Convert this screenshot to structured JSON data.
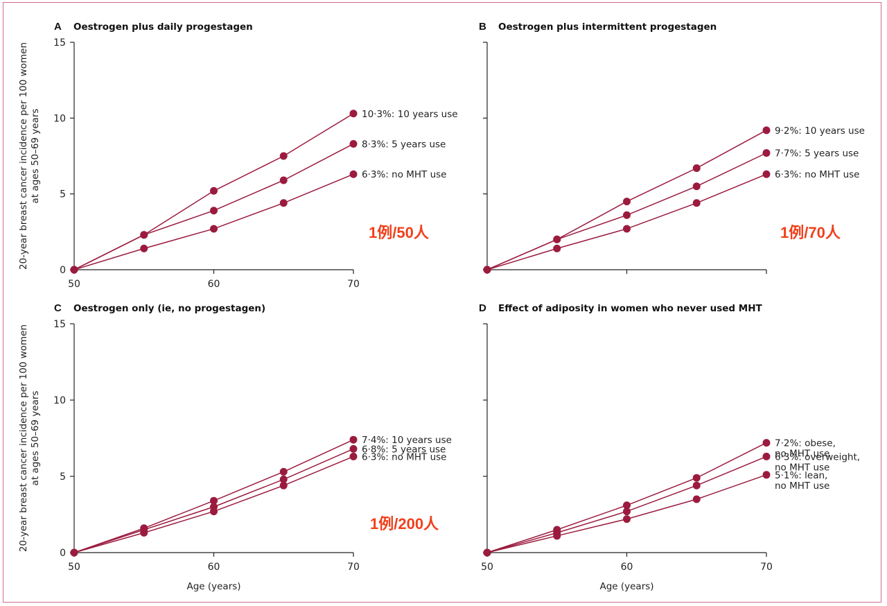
{
  "accent_color": "#9b1b3e",
  "note_color": "#f0401c",
  "chart_data": [
    {
      "type": "line",
      "panel": "A",
      "title": "Oestrogen plus daily progestagen",
      "xlabel": "",
      "ylabel_line1": "20-year breast cancer incidence per 100 women",
      "ylabel_line2": "at ages 50–69 years",
      "x": [
        50,
        55,
        60,
        65,
        70
      ],
      "xlim": [
        50,
        70
      ],
      "ylim": [
        0,
        15
      ],
      "xticks": [
        "50",
        "60",
        "70"
      ],
      "xtick_values": [
        50,
        60,
        70
      ],
      "yticks": [
        "0",
        "5",
        "10",
        "15"
      ],
      "ytick_values": [
        0,
        5,
        10,
        15
      ],
      "series": [
        {
          "values": [
            0,
            2.3,
            5.2,
            7.5,
            10.3
          ],
          "labels": [
            "10·3%: 10 years use"
          ]
        },
        {
          "values": [
            0,
            2.3,
            3.9,
            5.9,
            8.3
          ],
          "labels": [
            "8·3%: 5 years use"
          ]
        },
        {
          "values": [
            0,
            1.4,
            2.7,
            4.4,
            6.3
          ],
          "labels": [
            "6·3%: no MHT use"
          ]
        }
      ],
      "note": "1例/50人"
    },
    {
      "type": "line",
      "panel": "B",
      "title": "Oestrogen plus intermittent progestagen",
      "xlabel": "",
      "ylabel_line1": "",
      "ylabel_line2": "",
      "x": [
        50,
        55,
        60,
        65,
        70
      ],
      "xlim": [
        50,
        70
      ],
      "ylim": [
        0,
        15
      ],
      "xticks": [
        "",
        "",
        ""
      ],
      "xtick_values": [
        50,
        60,
        70
      ],
      "yticks": [
        "",
        "",
        "",
        ""
      ],
      "ytick_values": [
        0,
        5,
        10,
        15
      ],
      "series": [
        {
          "values": [
            0,
            2.0,
            4.5,
            6.7,
            9.2
          ],
          "labels": [
            "9·2%: 10 years use"
          ]
        },
        {
          "values": [
            0,
            2.0,
            3.6,
            5.5,
            7.7
          ],
          "labels": [
            "7·7%: 5 years use"
          ]
        },
        {
          "values": [
            0,
            1.4,
            2.7,
            4.4,
            6.3
          ],
          "labels": [
            "6·3%: no MHT use"
          ]
        }
      ],
      "note": "1例/70人"
    },
    {
      "type": "line",
      "panel": "C",
      "title": "Oestrogen only (ie, no progestagen)",
      "xlabel": "Age (years)",
      "ylabel_line1": "20-year breast cancer incidence per 100 women",
      "ylabel_line2": "at ages 50–69 years",
      "x": [
        50,
        55,
        60,
        65,
        70
      ],
      "xlim": [
        50,
        70
      ],
      "ylim": [
        0,
        15
      ],
      "xticks": [
        "50",
        "60",
        "70"
      ],
      "xtick_values": [
        50,
        60,
        70
      ],
      "yticks": [
        "0",
        "5",
        "10",
        "15"
      ],
      "ytick_values": [
        0,
        5,
        10,
        15
      ],
      "series": [
        {
          "values": [
            0,
            1.6,
            3.4,
            5.3,
            7.4
          ],
          "labels": [
            "7·4%: 10 years use"
          ]
        },
        {
          "values": [
            0,
            1.5,
            3.0,
            4.8,
            6.8
          ],
          "labels": [
            "6·8%: 5 years use"
          ]
        },
        {
          "values": [
            0,
            1.3,
            2.7,
            4.4,
            6.3
          ],
          "labels": [
            "6·3%: no MHT use"
          ]
        }
      ],
      "note": "1例/200人"
    },
    {
      "type": "line",
      "panel": "D",
      "title": "Effect of adiposity in women who never used MHT",
      "xlabel": "Age (years)",
      "ylabel_line1": "",
      "ylabel_line2": "",
      "x": [
        50,
        55,
        60,
        65,
        70
      ],
      "xlim": [
        50,
        70
      ],
      "ylim": [
        0,
        15
      ],
      "xticks": [
        "50",
        "60",
        "70"
      ],
      "xtick_values": [
        50,
        60,
        70
      ],
      "yticks": [
        "",
        "",
        "",
        ""
      ],
      "ytick_values": [
        0,
        5,
        10,
        15
      ],
      "series": [
        {
          "values": [
            0,
            1.5,
            3.1,
            4.9,
            7.2
          ],
          "labels": [
            "7·2%: obese,",
            "no MHT use"
          ]
        },
        {
          "values": [
            0,
            1.3,
            2.7,
            4.4,
            6.3
          ],
          "labels": [
            "6·3%: overweight,",
            "no MHT use"
          ]
        },
        {
          "values": [
            0,
            1.1,
            2.2,
            3.5,
            5.1
          ],
          "labels": [
            "5·1%: lean,",
            "no MHT use"
          ]
        }
      ],
      "note": ""
    }
  ]
}
